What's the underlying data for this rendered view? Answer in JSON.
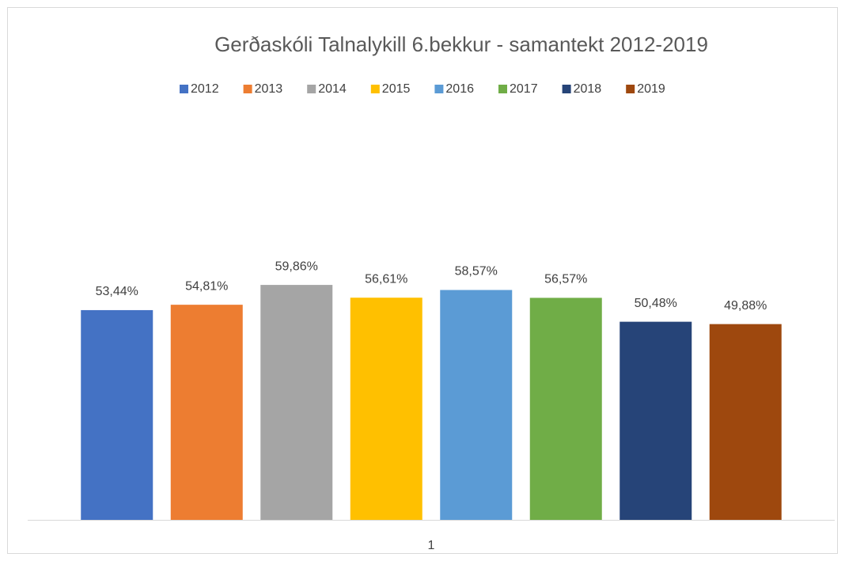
{
  "chart_data": {
    "type": "bar",
    "title": "Gerðaskóli Talnalykill 6.bekkur - samantekt 2012-2019",
    "categories": [
      "1"
    ],
    "ylim": [
      0,
      100
    ],
    "legend": "top",
    "series": [
      {
        "name": "2012",
        "color": "#4472c4",
        "values": [
          53.44
        ],
        "value_labels": [
          "53,44%"
        ]
      },
      {
        "name": "2013",
        "color": "#ed7d31",
        "values": [
          54.81
        ],
        "value_labels": [
          "54,81%"
        ]
      },
      {
        "name": "2014",
        "color": "#a5a5a5",
        "values": [
          59.86
        ],
        "value_labels": [
          "59,86%"
        ]
      },
      {
        "name": "2015",
        "color": "#ffc000",
        "values": [
          56.61
        ],
        "value_labels": [
          "56,61%"
        ]
      },
      {
        "name": "2016",
        "color": "#5b9bd5",
        "values": [
          58.57
        ],
        "value_labels": [
          "58,57%"
        ]
      },
      {
        "name": "2017",
        "color": "#70ad47",
        "values": [
          56.57
        ],
        "value_labels": [
          "56,57%"
        ]
      },
      {
        "name": "2018",
        "color": "#264478",
        "values": [
          50.48
        ],
        "value_labels": [
          "50,48%"
        ]
      },
      {
        "name": "2019",
        "color": "#9e480e",
        "values": [
          49.88
        ],
        "value_labels": [
          "49,88%"
        ]
      }
    ]
  }
}
